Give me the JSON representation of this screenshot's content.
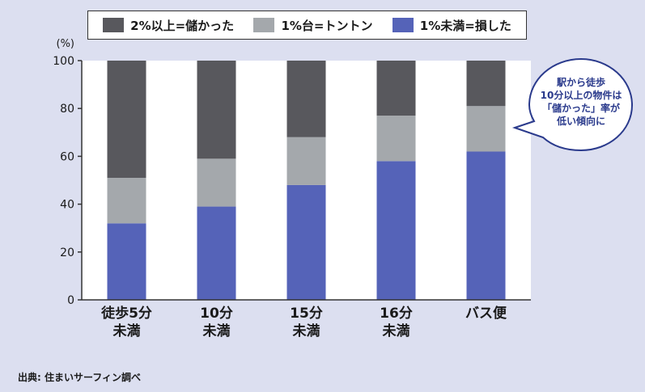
{
  "chart_data": {
    "type": "bar",
    "stacked": true,
    "categories": [
      "徒歩5分\n未満",
      "10分\n未満",
      "15分\n未満",
      "16分\n未満",
      "バス便"
    ],
    "series": [
      {
        "name": "1%未満=損した",
        "color": "#5563b8",
        "values": [
          32,
          39,
          48,
          58,
          62
        ]
      },
      {
        "name": "1%台=トントン",
        "color": "#a4a8ac",
        "values": [
          19,
          20,
          20,
          19,
          19
        ]
      },
      {
        "name": "2%以上=儲かった",
        "color": "#58585d",
        "values": [
          49,
          41,
          32,
          23,
          19
        ]
      }
    ],
    "y_unit_label": "(%)",
    "ylim": [
      0,
      100
    ],
    "yticks": [
      0,
      20,
      40,
      60,
      80,
      100
    ],
    "grid": false,
    "legend_position": "top"
  },
  "legend": [
    {
      "label": "2%以上=儲かった",
      "color": "#58585d"
    },
    {
      "label": "1%台=トントン",
      "color": "#a4a8ac"
    },
    {
      "label": "1%未満=損した",
      "color": "#5563b8"
    }
  ],
  "callout": {
    "lines": [
      "駅から徒歩",
      "10分以上の物件は",
      "「儲かった」率が",
      "低い傾向に"
    ]
  },
  "source": "出典: 住まいサーフィン調べ"
}
